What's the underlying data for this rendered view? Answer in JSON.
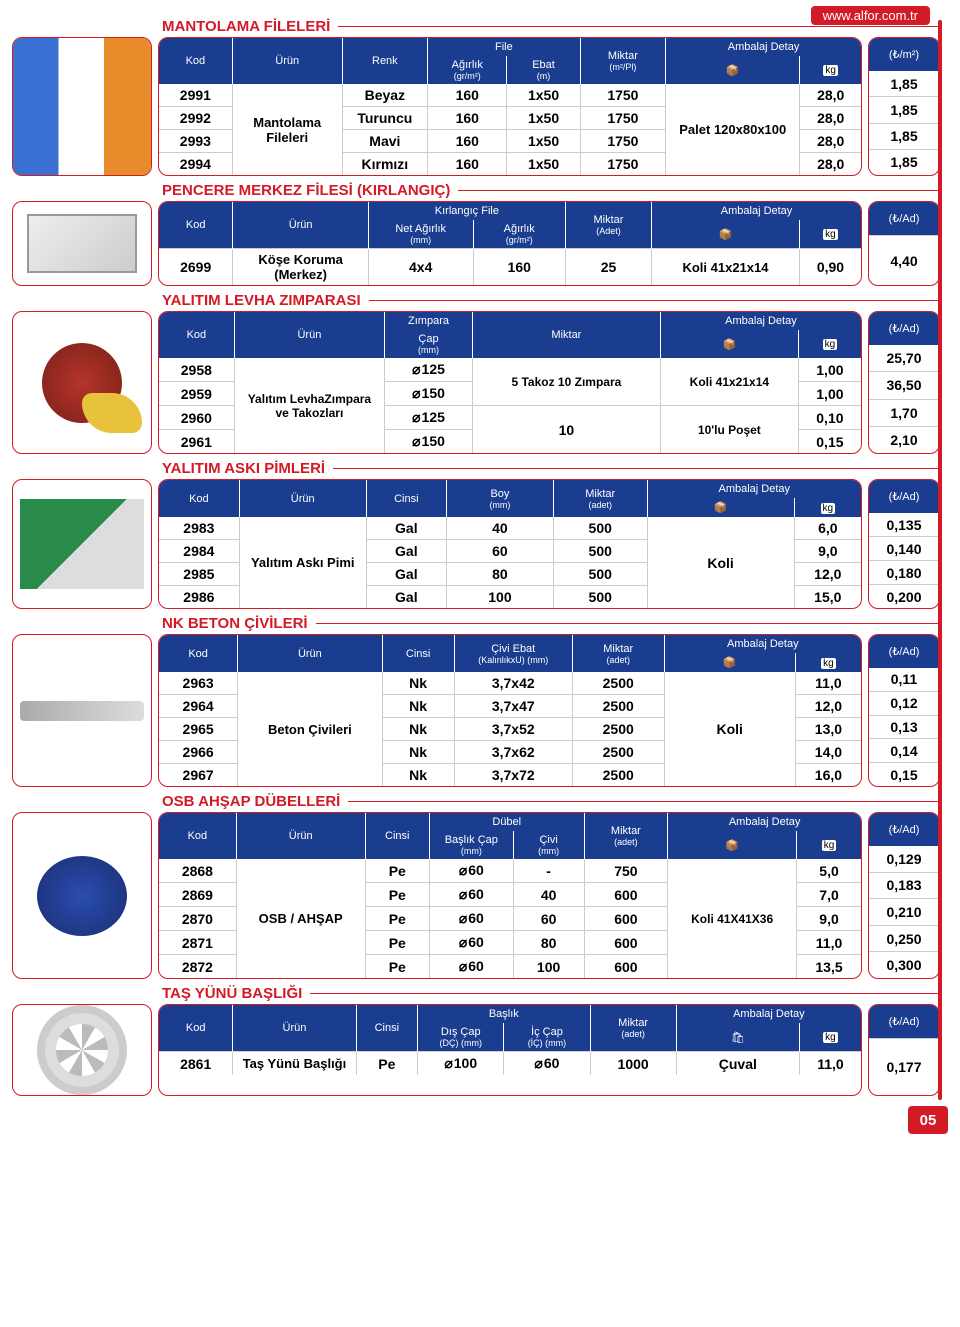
{
  "meta": {
    "url": "www.alfor.com.tr",
    "page_number": "05",
    "colors": {
      "header": "#1a3d8f",
      "accent": "#d41a26"
    }
  },
  "common": {
    "kod": "Kod",
    "urun": "Ürün",
    "renk": "Renk",
    "cinsi": "Cinsi",
    "miktar": "Miktar",
    "miktar_adet": "Miktar",
    "adet_sub": "(adet)",
    "ambalaj": "Ambalaj Detay",
    "price_m2": "(₺/m²)",
    "price_ad": "(₺/Ad)"
  },
  "s1": {
    "title": "MANTOLAMA FİLELERİ",
    "file_label": "File",
    "agirlik": "Ağırlık",
    "agirlik_sub": "(gr/m²)",
    "ebat": "Ebat",
    "ebat_sub": "(m)",
    "miktar_sub": "(m²/Pl)",
    "urun_name": "Mantolama Fileleri",
    "palet": "Palet 120x80x100",
    "rows": [
      {
        "kod": "2991",
        "renk": "Beyaz",
        "a": "160",
        "e": "1x50",
        "m": "1750",
        "kg": "28,0",
        "p": "1,85"
      },
      {
        "kod": "2992",
        "renk": "Turuncu",
        "a": "160",
        "e": "1x50",
        "m": "1750",
        "kg": "28,0",
        "p": "1,85"
      },
      {
        "kod": "2993",
        "renk": "Mavi",
        "a": "160",
        "e": "1x50",
        "m": "1750",
        "kg": "28,0",
        "p": "1,85"
      },
      {
        "kod": "2994",
        "renk": "Kırmızı",
        "a": "160",
        "e": "1x50",
        "m": "1750",
        "kg": "28,0",
        "p": "1,85"
      }
    ]
  },
  "s2": {
    "title": "PENCERE MERKEZ FİLESİ (KIRLANGIÇ)",
    "kfile": "Kırlangıç File",
    "net": "Net Ağırlık",
    "net_sub": "(mm)",
    "ag": "Ağırlık",
    "ag_sub": "(gr/m²)",
    "miktar_sub": "(Adet)",
    "kod": "2699",
    "urun_name": "Köşe Koruma (Merkez)",
    "net_v": "4x4",
    "ag_v": "160",
    "mik_v": "25",
    "pak": "Koli 41x21x14",
    "kg": "0,90",
    "p": "4,40"
  },
  "s3": {
    "title": "YALITIM LEVHA ZIMPARASI",
    "zimpara": "Zımpara",
    "cap": "Çap",
    "cap_sub": "(mm)",
    "urun_name": "Yalıtım LevhaZımpara ve Takozları",
    "mik1": "5 Takoz 10 Zımpara",
    "mik2": "10",
    "pak1": "Koli 41x21x14",
    "pak2": "10'lu Poşet",
    "rows": [
      {
        "kod": "2958",
        "d": "125",
        "kg": "1,00",
        "p": "25,70"
      },
      {
        "kod": "2959",
        "d": "150",
        "kg": "1,00",
        "p": "36,50"
      },
      {
        "kod": "2960",
        "d": "125",
        "kg": "0,10",
        "p": "1,70"
      },
      {
        "kod": "2961",
        "d": "150",
        "kg": "0,15",
        "p": "2,10"
      }
    ]
  },
  "s4": {
    "title": "YALITIM ASKI PİMLERİ",
    "boy": "Boy",
    "boy_sub": "(mm)",
    "urun_name": "Yalıtım Askı Pimi",
    "pak": "Koli",
    "rows": [
      {
        "kod": "2983",
        "c": "Gal",
        "b": "40",
        "m": "500",
        "kg": "6,0",
        "p": "0,135"
      },
      {
        "kod": "2984",
        "c": "Gal",
        "b": "60",
        "m": "500",
        "kg": "9,0",
        "p": "0,140"
      },
      {
        "kod": "2985",
        "c": "Gal",
        "b": "80",
        "m": "500",
        "kg": "12,0",
        "p": "0,180"
      },
      {
        "kod": "2986",
        "c": "Gal",
        "b": "100",
        "m": "500",
        "kg": "15,0",
        "p": "0,200"
      }
    ]
  },
  "s5": {
    "title": "NK BETON ÇİVİLERİ",
    "ce": "Çivi Ebat",
    "ce_sub": "(KalınlıkxU) (mm)",
    "urun_name": "Beton Çivileri",
    "pak": "Koli",
    "rows": [
      {
        "kod": "2963",
        "c": "Nk",
        "e": "3,7x42",
        "m": "2500",
        "kg": "11,0",
        "p": "0,11"
      },
      {
        "kod": "2964",
        "c": "Nk",
        "e": "3,7x47",
        "m": "2500",
        "kg": "12,0",
        "p": "0,12"
      },
      {
        "kod": "2965",
        "c": "Nk",
        "e": "3,7x52",
        "m": "2500",
        "kg": "13,0",
        "p": "0,13"
      },
      {
        "kod": "2966",
        "c": "Nk",
        "e": "3,7x62",
        "m": "2500",
        "kg": "14,0",
        "p": "0,14"
      },
      {
        "kod": "2967",
        "c": "Nk",
        "e": "3,7x72",
        "m": "2500",
        "kg": "16,0",
        "p": "0,15"
      }
    ]
  },
  "s6": {
    "title": "OSB AHŞAP DÜBELLERİ",
    "dubel": "Dübel",
    "bc": "Başlık Çap",
    "bc_sub": "(mm)",
    "civi": "Çivi",
    "civi_sub": "(mm)",
    "urun_name": "OSB / AHŞAP",
    "pak": "Koli 41X41X36",
    "rows": [
      {
        "kod": "2868",
        "c": "Pe",
        "bc": "60",
        "cv": "-",
        "m": "750",
        "kg": "5,0",
        "p": "0,129"
      },
      {
        "kod": "2869",
        "c": "Pe",
        "bc": "60",
        "cv": "40",
        "m": "600",
        "kg": "7,0",
        "p": "0,183"
      },
      {
        "kod": "2870",
        "c": "Pe",
        "bc": "60",
        "cv": "60",
        "m": "600",
        "kg": "9,0",
        "p": "0,210"
      },
      {
        "kod": "2871",
        "c": "Pe",
        "bc": "60",
        "cv": "80",
        "m": "600",
        "kg": "11,0",
        "p": "0,250"
      },
      {
        "kod": "2872",
        "c": "Pe",
        "bc": "60",
        "cv": "100",
        "m": "600",
        "kg": "13,5",
        "p": "0,300"
      }
    ]
  },
  "s7": {
    "title": "TAŞ YÜNÜ BAŞLIĞI",
    "baslik": "Başlık",
    "dc": "Dış Çap",
    "dc_sub": "(DÇ) (mm)",
    "ic": "İç Çap",
    "ic_sub": "(İÇ) (mm)",
    "kod": "2861",
    "urun_name": "Taş Yünü Başlığı",
    "c": "Pe",
    "dc_v": "100",
    "ic_v": "60",
    "m": "1000",
    "pak": "Çuval",
    "kg": "11,0",
    "p": "0,177"
  }
}
